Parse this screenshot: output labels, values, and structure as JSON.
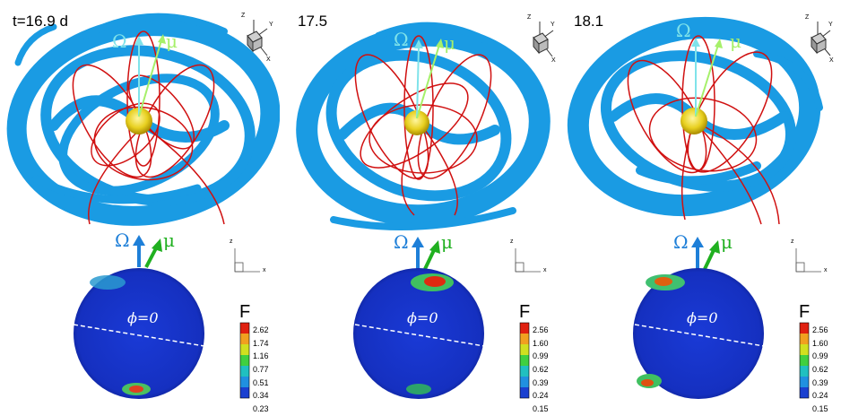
{
  "panels": [
    {
      "time_label": "t=16.9 d",
      "omega_top": "Ω",
      "mu_top": "μ",
      "omega_bottom": "Ω",
      "mu_bottom": "μ",
      "phi_label": "ϕ=0",
      "colorbar": {
        "title": "F",
        "ticks": [
          "2.62",
          "1.74",
          "1.16",
          "0.77",
          "0.51",
          "0.34",
          "0.23"
        ]
      },
      "axes3d": {
        "z": "Z",
        "y": "Y",
        "x": "X"
      },
      "axes2d": {
        "z": "z",
        "x": "x"
      }
    },
    {
      "time_label": "17.5",
      "omega_top": "Ω",
      "mu_top": "μ",
      "omega_bottom": "Ω",
      "mu_bottom": "μ",
      "phi_label": "ϕ=0",
      "colorbar": {
        "title": "F",
        "ticks": [
          "2.56",
          "1.60",
          "0.99",
          "0.62",
          "0.39",
          "0.24",
          "0.15"
        ]
      },
      "axes3d": {
        "z": "Z",
        "y": "Y",
        "x": "X"
      },
      "axes2d": {
        "z": "z",
        "x": "x"
      }
    },
    {
      "time_label": "18.1",
      "omega_top": "Ω",
      "mu_top": "μ",
      "omega_bottom": "Ω",
      "mu_bottom": "μ",
      "phi_label": "ϕ=0",
      "colorbar": {
        "title": "F",
        "ticks": [
          "2.56",
          "1.60",
          "0.99",
          "0.62",
          "0.39",
          "0.24",
          "0.15"
        ]
      },
      "axes3d": {
        "z": "Z",
        "y": "Y",
        "x": "X"
      },
      "axes2d": {
        "z": "z",
        "x": "x"
      }
    }
  ],
  "colors": {
    "disk": "#1a9be3",
    "disk_dark": "#0d6fb0",
    "field_lines": "#d01010",
    "star": "#e8d020",
    "omega_arrow_top": "#7fe3ea",
    "mu_arrow_top": "#a6f06a",
    "omega_arrow_bottom": "#1e7fd8",
    "mu_arrow_bottom": "#20b020",
    "sphere": "#1433c8"
  }
}
